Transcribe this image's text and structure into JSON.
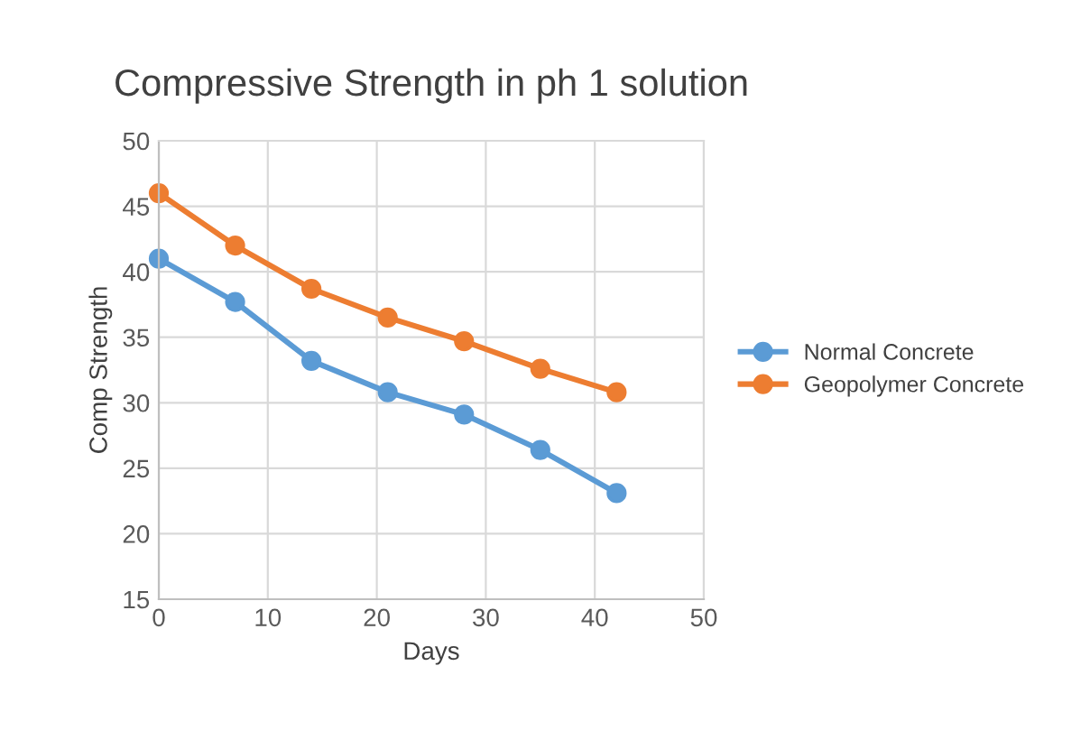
{
  "chart_data": {
    "type": "line",
    "title": "Compressive Strength in ph 1 solution",
    "xlabel": "Days",
    "ylabel": "Comp Strength",
    "x": [
      0,
      7,
      14,
      21,
      28,
      35,
      42
    ],
    "series": [
      {
        "name": "Normal Concrete",
        "color": "#5b9bd5",
        "values": [
          41,
          37.7,
          33.2,
          30.8,
          29.1,
          26.4,
          23.1
        ]
      },
      {
        "name": "Geopolymer Concrete",
        "color": "#ed7d31",
        "values": [
          46,
          42,
          38.7,
          36.5,
          34.7,
          32.6,
          30.8
        ]
      }
    ],
    "xlim": [
      0,
      50
    ],
    "xticks": [
      0,
      10,
      20,
      30,
      40,
      50
    ],
    "ylim": [
      15,
      50
    ],
    "yticks": [
      15,
      20,
      25,
      30,
      35,
      40,
      45,
      50
    ],
    "grid": true,
    "legend": "right",
    "marker": "circle",
    "line_style": "solid"
  }
}
